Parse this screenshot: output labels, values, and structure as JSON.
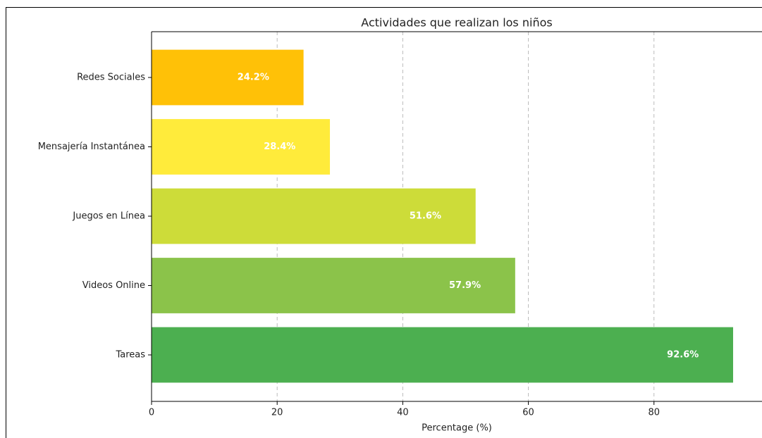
{
  "chart_data": {
    "type": "barh",
    "title": "Actividades que realizan los niños",
    "categories": [
      "Tareas",
      "Videos Online",
      "Juegos en Línea",
      "Mensajería Instantánea",
      "Redes Sociales"
    ],
    "values": [
      92.6,
      57.9,
      51.6,
      28.4,
      24.2
    ],
    "value_labels": [
      "92.6%",
      "57.9%",
      "51.6%",
      "28.4%",
      "24.2%"
    ],
    "colors": [
      "#4CAF50",
      "#8BC34A",
      "#CDDC39",
      "#FFEB3B",
      "#FFC107"
    ],
    "xlabel": "Percentage (%)",
    "xlim": [
      0,
      97.2
    ],
    "xticks": [
      0,
      20,
      40,
      60,
      80
    ],
    "grid": true
  }
}
